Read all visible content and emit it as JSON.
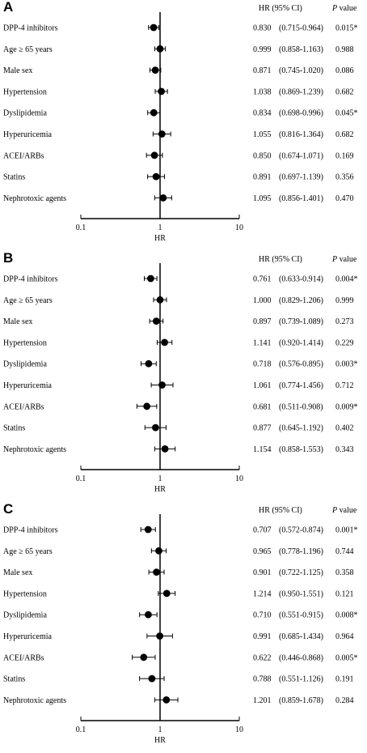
{
  "chart_data": [
    {
      "type": "forest",
      "panel_label": "A",
      "xlabel": "HR",
      "xscale": "log",
      "xlim": [
        0.1,
        10
      ],
      "xticks": [
        "0.1",
        "1",
        "10"
      ],
      "reference_line": 1,
      "columns": {
        "hr_ci": "HR (95% CI)",
        "p_prefix": "P",
        "p_suffix": " value"
      },
      "rows": [
        {
          "label": "DPP-4 inhibitors",
          "hr": 0.83,
          "lo": 0.715,
          "hi": 0.964,
          "hr_text": "0.830",
          "ci_text": "(0.715-0.964)",
          "p": "0.015*"
        },
        {
          "label": "Age  ≥ 65 years",
          "hr": 0.999,
          "lo": 0.858,
          "hi": 1.163,
          "hr_text": "0.999",
          "ci_text": "(0.858-1.163)",
          "p": "0.988"
        },
        {
          "label": "Male sex",
          "hr": 0.871,
          "lo": 0.745,
          "hi": 1.02,
          "hr_text": "0.871",
          "ci_text": "(0.745-1.020)",
          "p": "0.086"
        },
        {
          "label": "Hypertension",
          "hr": 1.038,
          "lo": 0.869,
          "hi": 1.239,
          "hr_text": "1.038",
          "ci_text": "(0.869-1.239)",
          "p": "0.682"
        },
        {
          "label": "Dyslipidemia",
          "hr": 0.834,
          "lo": 0.698,
          "hi": 0.996,
          "hr_text": "0.834",
          "ci_text": "(0.698-0.996)",
          "p": "0.045*"
        },
        {
          "label": "Hyperuricemia",
          "hr": 1.055,
          "lo": 0.816,
          "hi": 1.364,
          "hr_text": "1.055",
          "ci_text": "(0.816-1.364)",
          "p": "0.682"
        },
        {
          "label": "ACEI/ARBs",
          "hr": 0.85,
          "lo": 0.674,
          "hi": 1.071,
          "hr_text": "0.850",
          "ci_text": "(0.674-1.071)",
          "p": "0.169"
        },
        {
          "label": "Statins",
          "hr": 0.891,
          "lo": 0.697,
          "hi": 1.139,
          "hr_text": "0.891",
          "ci_text": "(0.697-1.139)",
          "p": "0.356"
        },
        {
          "label": "Nephrotoxic agents",
          "hr": 1.095,
          "lo": 0.856,
          "hi": 1.401,
          "hr_text": "1.095",
          "ci_text": "(0.856-1.401)",
          "p": "0.470"
        }
      ]
    },
    {
      "type": "forest",
      "panel_label": "B",
      "xlabel": "HR",
      "xscale": "log",
      "xlim": [
        0.1,
        10
      ],
      "xticks": [
        "0.1",
        "1",
        "10"
      ],
      "reference_line": 1,
      "columns": {
        "hr_ci": "HR (95% CI)",
        "p_prefix": "P",
        "p_suffix": " value"
      },
      "rows": [
        {
          "label": "DPP-4 inhibitors",
          "hr": 0.761,
          "lo": 0.633,
          "hi": 0.914,
          "hr_text": "0.761",
          "ci_text": "(0.633-0.914)",
          "p": "0.004*"
        },
        {
          "label": "Age  ≥ 65 years",
          "hr": 1.0,
          "lo": 0.829,
          "hi": 1.206,
          "hr_text": "1.000",
          "ci_text": "(0.829-1.206)",
          "p": "0.999"
        },
        {
          "label": "Male sex",
          "hr": 0.897,
          "lo": 0.739,
          "hi": 1.089,
          "hr_text": "0.897",
          "ci_text": "(0.739-1.089)",
          "p": "0.273"
        },
        {
          "label": "Hypertension",
          "hr": 1.141,
          "lo": 0.92,
          "hi": 1.414,
          "hr_text": "1.141",
          "ci_text": "(0.920-1.414)",
          "p": "0.229"
        },
        {
          "label": "Dyslipidemia",
          "hr": 0.718,
          "lo": 0.576,
          "hi": 0.895,
          "hr_text": "0.718",
          "ci_text": "(0.576-0.895)",
          "p": "0.003*"
        },
        {
          "label": "Hyperuricemia",
          "hr": 1.061,
          "lo": 0.774,
          "hi": 1.456,
          "hr_text": "1.061",
          "ci_text": "(0.774-1.456)",
          "p": "0.712"
        },
        {
          "label": "ACEI/ARBs",
          "hr": 0.681,
          "lo": 0.511,
          "hi": 0.908,
          "hr_text": "0.681",
          "ci_text": "(0.511-0.908)",
          "p": "0.009*"
        },
        {
          "label": "Statins",
          "hr": 0.877,
          "lo": 0.645,
          "hi": 1.192,
          "hr_text": "0.877",
          "ci_text": "(0.645-1.192)",
          "p": "0.402"
        },
        {
          "label": "Nephrotoxic agents",
          "hr": 1.154,
          "lo": 0.858,
          "hi": 1.553,
          "hr_text": "1.154",
          "ci_text": "(0.858-1.553)",
          "p": "0.343"
        }
      ]
    },
    {
      "type": "forest",
      "panel_label": "C",
      "xlabel": "HR",
      "xscale": "log",
      "xlim": [
        0.1,
        10
      ],
      "xticks": [
        "0.1",
        "1",
        "10"
      ],
      "reference_line": 1,
      "columns": {
        "hr_ci": "HR (95% CI)",
        "p_prefix": "P",
        "p_suffix": " value"
      },
      "rows": [
        {
          "label": "DPP-4 inhibitors",
          "hr": 0.707,
          "lo": 0.572,
          "hi": 0.874,
          "hr_text": "0.707",
          "ci_text": "(0.572-0.874)",
          "p": "0.001*"
        },
        {
          "label": "Age  ≥ 65 years",
          "hr": 0.965,
          "lo": 0.778,
          "hi": 1.196,
          "hr_text": "0.965",
          "ci_text": "(0.778-1.196)",
          "p": "0.744"
        },
        {
          "label": "Male sex",
          "hr": 0.901,
          "lo": 0.722,
          "hi": 1.125,
          "hr_text": "0.901",
          "ci_text": "(0.722-1.125)",
          "p": "0.358"
        },
        {
          "label": "Hypertension",
          "hr": 1.214,
          "lo": 0.95,
          "hi": 1.551,
          "hr_text": "1.214",
          "ci_text": "(0.950-1.551)",
          "p": "0.121"
        },
        {
          "label": "Dyslipidemia",
          "hr": 0.71,
          "lo": 0.551,
          "hi": 0.915,
          "hr_text": "0.710",
          "ci_text": "(0.551-0.915)",
          "p": "0.008*"
        },
        {
          "label": "Hyperuricemia",
          "hr": 0.991,
          "lo": 0.685,
          "hi": 1.434,
          "hr_text": "0.991",
          "ci_text": "(0.685-1.434)",
          "p": "0.964"
        },
        {
          "label": "ACEI/ARBs",
          "hr": 0.622,
          "lo": 0.446,
          "hi": 0.868,
          "hr_text": "0.622",
          "ci_text": "(0.446-0.868)",
          "p": "0.005*"
        },
        {
          "label": "Statins",
          "hr": 0.788,
          "lo": 0.551,
          "hi": 1.126,
          "hr_text": "0.788",
          "ci_text": "(0.551-1.126)",
          "p": "0.191"
        },
        {
          "label": "Nephrotoxic agents",
          "hr": 1.201,
          "lo": 0.859,
          "hi": 1.678,
          "hr_text": "1.201",
          "ci_text": "(0.859-1.678)",
          "p": "0.284"
        }
      ]
    }
  ]
}
